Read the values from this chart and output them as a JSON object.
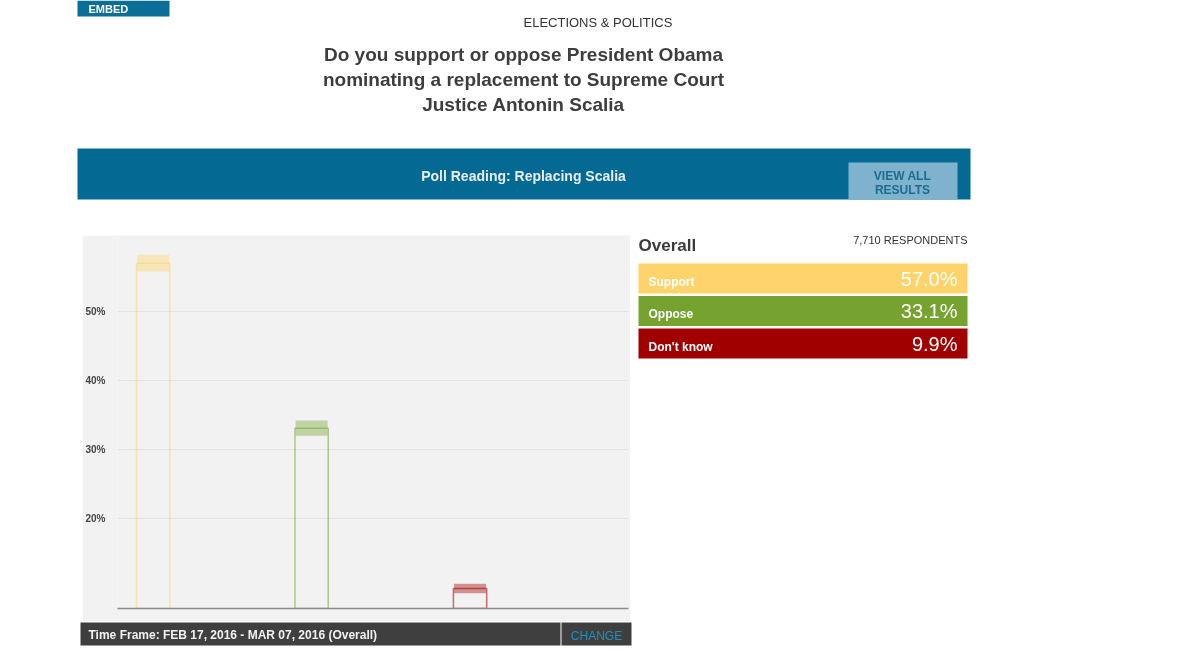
{
  "chart_data": [
    {
      "type": "bar",
      "title": "Do you support or oppose President Obama nominating a replacement to Supreme Court Justice Antonin Scalia",
      "subtitle": "Poll Reading: Replacing Scalia",
      "annotations": [
        "EMBED",
        "ELECTIONS & POLITICS",
        "VIEW ALL RESULTS",
        "Time Frame: FEB 17, 2016 - MAR 07, 2016 (Overall)",
        "CHANGE"
      ],
      "categories": [
        null,
        null,
        null
      ],
      "values": [
        57.0,
        33.1,
        9.9
      ],
      "colors": [
        "#ffd36b",
        "#76a22f",
        "#a00000"
      ],
      "errors": [
        1.2,
        1.1,
        0.7
      ],
      "ylim": [
        7,
        61
      ],
      "yticks": [
        {
          "value": 20,
          "label": "20%"
        },
        {
          "value": 30,
          "label": "30%"
        },
        {
          "value": 40,
          "label": "40%"
        },
        {
          "value": 50,
          "label": "50%"
        }
      ],
      "grid": "y",
      "tick_labels": "y"
    },
    {
      "type": "other",
      "title": "Overall",
      "annotations": [
        "7,710 RESPONDENTS"
      ],
      "categories": [
        "Support",
        "Oppose",
        "Don't know"
      ],
      "values": [
        57.0,
        33.1,
        9.9
      ],
      "value_labels": [
        "57.0%",
        "33.1%",
        "9.9%"
      ]
    }
  ]
}
